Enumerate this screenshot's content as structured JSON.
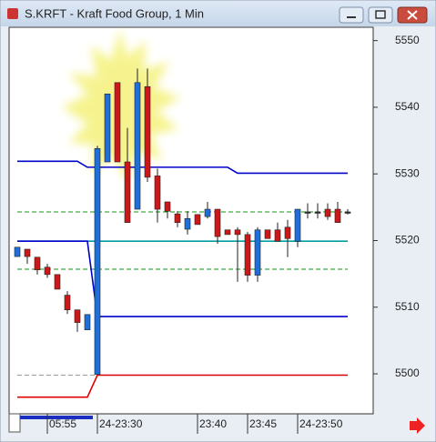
{
  "window": {
    "title": "S.KRFT - Kraft Food Group, 1 Min"
  },
  "chart_data": {
    "type": "candlestick",
    "categories": [
      null,
      null,
      null,
      "05:55",
      null,
      null,
      null,
      null,
      "24-23:30",
      null,
      null,
      null,
      null,
      null,
      null,
      null,
      null,
      null,
      "23:40",
      null,
      null,
      null,
      null,
      "23:45",
      null,
      null,
      null,
      null,
      "24-23:50",
      null,
      null,
      null,
      null,
      null
    ],
    "open": [
      5517.6,
      5518.7,
      5517.5,
      5516.0,
      5514.9,
      5511.8,
      5509.6,
      5506.6,
      5499.9,
      5531.8,
      5543.7,
      5531.8,
      5524.7,
      5543.1,
      5529.7,
      5525.8,
      5524.0,
      5521.7,
      5523.9,
      5523.6,
      5524.7,
      5521.6,
      5521.6,
      5520.9,
      5514.8,
      5521.6,
      5521.6,
      5522.0,
      5519.9,
      5524.3,
      5524.3,
      5524.7,
      5524.7,
      5524.3
    ],
    "high": [
      5519.0,
      5518.7,
      5517.5,
      5516.5,
      5514.9,
      5512.4,
      5509.6,
      5508.9,
      5534.2,
      5542.0,
      5543.7,
      5536.9,
      5545.8,
      5545.8,
      5530.8,
      5525.8,
      5524.4,
      5524.4,
      5523.9,
      5525.8,
      5524.7,
      5521.6,
      5522.0,
      5521.3,
      5522.0,
      5521.6,
      5522.7,
      5523.1,
      5524.7,
      5525.6,
      5525.6,
      5525.6,
      5525.8,
      5524.7
    ],
    "low": [
      5517.6,
      5516.5,
      5514.9,
      5514.4,
      5512.7,
      5509.0,
      5506.3,
      5506.6,
      5499.9,
      5531.8,
      5531.8,
      5522.7,
      5524.7,
      5528.8,
      5522.7,
      5523.3,
      5522.0,
      5520.9,
      5522.4,
      5523.3,
      5519.5,
      5520.9,
      5513.8,
      5513.8,
      5513.8,
      5520.3,
      5519.9,
      5517.5,
      5519.0,
      5523.3,
      5523.3,
      5523.1,
      5522.7,
      5523.9
    ],
    "close": [
      5519.0,
      5517.6,
      5515.6,
      5514.9,
      5512.7,
      5509.6,
      5507.7,
      5508.9,
      5533.8,
      5542.0,
      5531.8,
      5522.7,
      5543.7,
      5529.5,
      5524.7,
      5524.4,
      5522.7,
      5523.3,
      5522.4,
      5524.7,
      5520.6,
      5520.9,
      5520.9,
      5514.8,
      5521.6,
      5520.3,
      5519.9,
      5520.3,
      5524.7,
      5524.3,
      5524.3,
      5523.6,
      5522.7,
      5524.3
    ],
    "up_color": "#1e6fd9",
    "down_color": "#cc1818",
    "flat_color": "#333333",
    "series": [
      {
        "color": "#0000cc",
        "values": [
          5531.9,
          5531.9,
          5531.9,
          5531.9,
          5531.9,
          5531.9,
          5531.9,
          5531.0,
          5531.0,
          5531.0,
          5531.0,
          5531.0,
          5531.0,
          5531.0,
          5531.0,
          5531.0,
          5531.0,
          5531.0,
          5531.0,
          5531.0,
          5531.0,
          5531.0,
          5530.1,
          5530.1,
          5530.1,
          5530.1,
          5530.1,
          5530.1,
          5530.1,
          5530.1,
          5530.1,
          5530.1,
          5530.1,
          5530.1
        ]
      },
      {
        "color": "#00a0a0",
        "values": [
          5519.9,
          5519.9,
          5519.9,
          5519.9,
          5519.9,
          5519.9,
          5519.9,
          5519.9,
          5519.9,
          5519.9,
          5519.9,
          5519.9,
          5519.9,
          5519.9,
          5519.9,
          5519.9,
          5519.9,
          5519.9,
          5519.9,
          5519.9,
          5519.9,
          5519.9,
          5519.9,
          5519.9,
          5519.9,
          5519.9,
          5519.9,
          5519.9,
          5519.9,
          5519.9,
          5519.9,
          5519.9,
          5519.9,
          5519.9
        ]
      },
      {
        "color": "#00a000",
        "dashed": true,
        "values": [
          5524.3,
          5524.3,
          5524.3,
          5524.3,
          5524.3,
          5524.3,
          5524.3,
          5524.3,
          5524.3,
          5524.3,
          5524.3,
          5524.3,
          5524.3,
          5524.3,
          5524.3,
          5524.3,
          5524.3,
          5524.3,
          5524.3,
          5524.3,
          5524.3,
          5524.3,
          5524.3,
          5524.3,
          5524.3,
          5524.3,
          5524.3,
          5524.3,
          5524.3,
          5524.3,
          5524.3,
          5524.3,
          5524.3,
          5524.3
        ]
      },
      {
        "color": "#00a000",
        "dashed": true,
        "values": [
          5515.7,
          5515.7,
          5515.7,
          5515.7,
          5515.7,
          5515.7,
          5515.7,
          5515.7,
          5515.7,
          5515.7,
          5515.7,
          5515.7,
          5515.7,
          5515.7,
          5515.7,
          5515.7,
          5515.7,
          5515.7,
          5515.7,
          5515.7,
          5515.7,
          5515.7,
          5515.7,
          5515.7,
          5515.7,
          5515.7,
          5515.7,
          5515.7,
          5515.7,
          5515.7,
          5515.7,
          5515.7,
          5515.7,
          5515.7
        ]
      },
      {
        "color": "#0000cc",
        "values": [
          5519.9,
          5519.9,
          5519.9,
          5519.9,
          5519.9,
          5519.9,
          5519.9,
          5519.9,
          5508.6,
          5508.6,
          5508.6,
          5508.6,
          5508.6,
          5508.6,
          5508.6,
          5508.6,
          5508.6,
          5508.6,
          5508.6,
          5508.6,
          5508.6,
          5508.6,
          5508.6,
          5508.6,
          5508.6,
          5508.6,
          5508.6,
          5508.6,
          5508.6,
          5508.6,
          5508.6,
          5508.6,
          5508.6,
          5508.6
        ]
      },
      {
        "color": "#999999",
        "dashed": true,
        "values": [
          5499.8,
          5499.8,
          5499.8,
          5499.8,
          5499.8,
          5499.8,
          5499.8,
          5499.8,
          5499.8,
          null,
          null,
          null,
          null,
          null,
          null,
          null,
          null,
          null,
          null,
          null,
          null,
          null,
          null,
          null,
          null,
          null,
          null,
          null,
          null,
          null,
          null,
          null,
          null,
          null
        ]
      },
      {
        "color": "#dd0000",
        "values": [
          5496.5,
          5496.5,
          5496.5,
          5496.5,
          5496.5,
          5496.5,
          5496.5,
          5496.5,
          5499.8,
          5499.8,
          5499.8,
          5499.8,
          5499.8,
          5499.8,
          5499.8,
          5499.8,
          5499.8,
          5499.8,
          5499.8,
          5499.8,
          5499.8,
          5499.8,
          5499.8,
          5499.8,
          5499.8,
          5499.8,
          5499.8,
          5499.8,
          5499.8,
          5499.8,
          5499.8,
          5499.8,
          5499.8,
          5499.8
        ]
      }
    ],
    "ylim": [
      5494,
      5552
    ],
    "yticks": [
      5500,
      5510,
      5520,
      5530,
      5540,
      5550
    ]
  }
}
